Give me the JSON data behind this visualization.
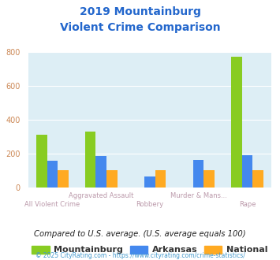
{
  "title_line1": "2019 Mountainburg",
  "title_line2": "Violent Crime Comparison",
  "categories": [
    "All Violent Crime",
    "Aggravated Assault",
    "Robbery",
    "Murder & Mans...",
    "Rape"
  ],
  "mountainburg": [
    310,
    330,
    0,
    0,
    770
  ],
  "arkansas": [
    155,
    183,
    65,
    163,
    188
  ],
  "national": [
    100,
    100,
    100,
    100,
    100
  ],
  "colors": {
    "mountainburg": "#88cc22",
    "arkansas": "#4488ee",
    "national": "#ffaa22"
  },
  "ylim": [
    0,
    800
  ],
  "yticks": [
    0,
    200,
    400,
    600,
    800
  ],
  "bg_color": "#ddeef5",
  "title_color": "#2266cc",
  "ytick_color": "#cc8855",
  "xlabel_color": "#bb99aa",
  "subtitle": "Compared to U.S. average. (U.S. average equals 100)",
  "subtitle_color": "#222222",
  "footer": "© 2025 CityRating.com - https://www.cityrating.com/crime-statistics/",
  "footer_color": "#4499cc",
  "legend_labels": [
    "Mountainburg",
    "Arkansas",
    "National"
  ],
  "legend_text_color": "#333333"
}
